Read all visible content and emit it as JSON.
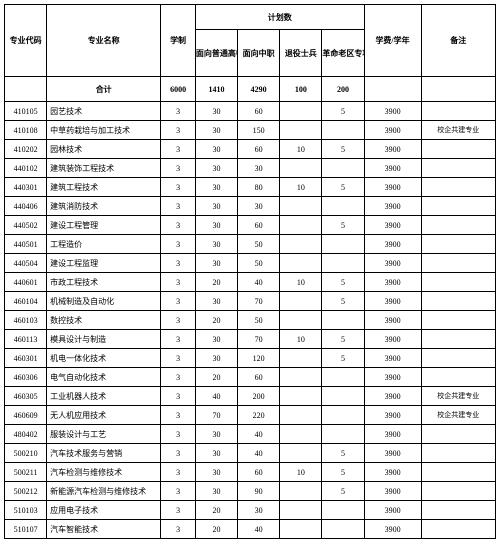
{
  "header": {
    "code": "专业代码",
    "name": "专业名称",
    "xuezhi": "学制",
    "plan_group": "计划数",
    "plan_gaozhong": "面向普通高中",
    "plan_zhongzhi": "面向中职",
    "plan_tuiyi": "退役士兵",
    "plan_geming": "革命老区专项计划",
    "fee": "学费/学年",
    "note": "备注",
    "heji": "合计",
    "heji_xuezhi": "6000",
    "heji_gaozhong": "1410",
    "heji_zhongzhi": "4290",
    "heji_tuiyi": "100",
    "heji_geming": "200"
  },
  "rows": [
    {
      "code": "410105",
      "name": "园艺技术",
      "xz": "3",
      "gz": "30",
      "zz": "60",
      "ty": "",
      "gm": "5",
      "fee": "3900",
      "note": ""
    },
    {
      "code": "410108",
      "name": "中草药栽培与加工技术",
      "xz": "3",
      "gz": "30",
      "zz": "150",
      "ty": "",
      "gm": "",
      "fee": "3900",
      "note": "校企共建专业"
    },
    {
      "code": "410202",
      "name": "园林技术",
      "xz": "3",
      "gz": "30",
      "zz": "60",
      "ty": "10",
      "gm": "5",
      "fee": "3900",
      "note": ""
    },
    {
      "code": "440102",
      "name": "建筑装饰工程技术",
      "xz": "3",
      "gz": "30",
      "zz": "30",
      "ty": "",
      "gm": "",
      "fee": "3900",
      "note": ""
    },
    {
      "code": "440301",
      "name": "建筑工程技术",
      "xz": "3",
      "gz": "30",
      "zz": "80",
      "ty": "10",
      "gm": "5",
      "fee": "3900",
      "note": ""
    },
    {
      "code": "440406",
      "name": "建筑消防技术",
      "xz": "3",
      "gz": "30",
      "zz": "30",
      "ty": "",
      "gm": "",
      "fee": "3900",
      "note": ""
    },
    {
      "code": "440502",
      "name": "建设工程管理",
      "xz": "3",
      "gz": "30",
      "zz": "60",
      "ty": "",
      "gm": "5",
      "fee": "3900",
      "note": ""
    },
    {
      "code": "440501",
      "name": "工程造价",
      "xz": "3",
      "gz": "30",
      "zz": "50",
      "ty": "",
      "gm": "",
      "fee": "3900",
      "note": ""
    },
    {
      "code": "440504",
      "name": "建设工程监理",
      "xz": "3",
      "gz": "30",
      "zz": "50",
      "ty": "",
      "gm": "",
      "fee": "3900",
      "note": ""
    },
    {
      "code": "440601",
      "name": "市政工程技术",
      "xz": "3",
      "gz": "20",
      "zz": "40",
      "ty": "10",
      "gm": "5",
      "fee": "3900",
      "note": ""
    },
    {
      "code": "460104",
      "name": "机械制造及自动化",
      "xz": "3",
      "gz": "30",
      "zz": "70",
      "ty": "",
      "gm": "5",
      "fee": "3900",
      "note": ""
    },
    {
      "code": "460103",
      "name": "数控技术",
      "xz": "3",
      "gz": "20",
      "zz": "50",
      "ty": "",
      "gm": "",
      "fee": "3900",
      "note": ""
    },
    {
      "code": "460113",
      "name": "模具设计与制造",
      "xz": "3",
      "gz": "30",
      "zz": "70",
      "ty": "10",
      "gm": "5",
      "fee": "3900",
      "note": ""
    },
    {
      "code": "460301",
      "name": "机电一体化技术",
      "xz": "3",
      "gz": "30",
      "zz": "120",
      "ty": "",
      "gm": "5",
      "fee": "3900",
      "note": ""
    },
    {
      "code": "460306",
      "name": "电气自动化技术",
      "xz": "3",
      "gz": "20",
      "zz": "60",
      "ty": "",
      "gm": "",
      "fee": "3900",
      "note": ""
    },
    {
      "code": "460305",
      "name": "工业机器人技术",
      "xz": "3",
      "gz": "40",
      "zz": "200",
      "ty": "",
      "gm": "",
      "fee": "3900",
      "note": "校企共建专业"
    },
    {
      "code": "460609",
      "name": "无人机应用技术",
      "xz": "3",
      "gz": "70",
      "zz": "220",
      "ty": "",
      "gm": "",
      "fee": "3900",
      "note": "校企共建专业"
    },
    {
      "code": "480402",
      "name": "服装设计与工艺",
      "xz": "3",
      "gz": "30",
      "zz": "40",
      "ty": "",
      "gm": "",
      "fee": "3900",
      "note": ""
    },
    {
      "code": "500210",
      "name": "汽车技术服务与营销",
      "xz": "3",
      "gz": "30",
      "zz": "40",
      "ty": "",
      "gm": "5",
      "fee": "3900",
      "note": ""
    },
    {
      "code": "500211",
      "name": "汽车检测与维修技术",
      "xz": "3",
      "gz": "30",
      "zz": "60",
      "ty": "10",
      "gm": "5",
      "fee": "3900",
      "note": ""
    },
    {
      "code": "500212",
      "name": "新能源汽车检测与维修技术",
      "xz": "3",
      "gz": "30",
      "zz": "90",
      "ty": "",
      "gm": "5",
      "fee": "3900",
      "note": ""
    },
    {
      "code": "510103",
      "name": "应用电子技术",
      "xz": "3",
      "gz": "20",
      "zz": "30",
      "ty": "",
      "gm": "",
      "fee": "3900",
      "note": ""
    },
    {
      "code": "510107",
      "name": "汽车智能技术",
      "xz": "3",
      "gz": "20",
      "zz": "40",
      "ty": "",
      "gm": "",
      "fee": "3900",
      "note": ""
    }
  ]
}
